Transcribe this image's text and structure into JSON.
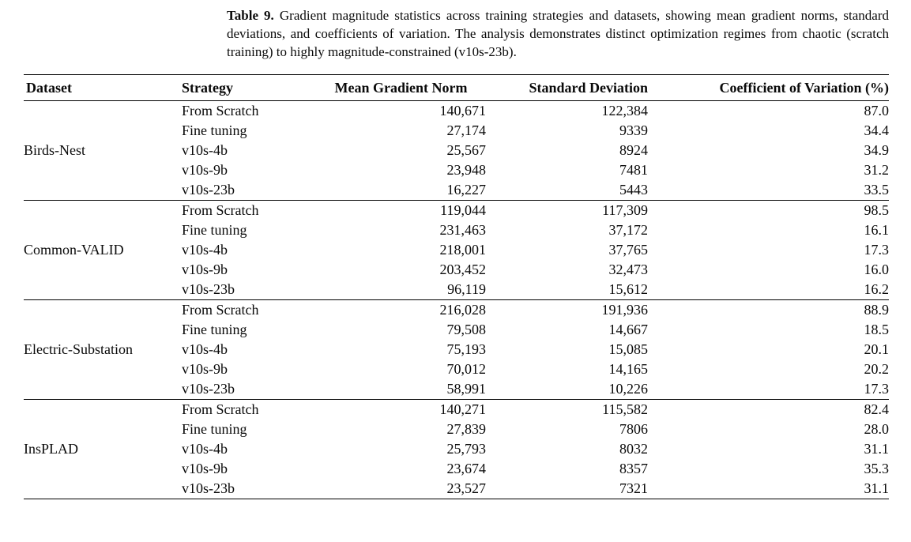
{
  "caption": {
    "label": "Table 9.",
    "text": "Gradient magnitude statistics across training strategies and datasets, showing mean gradient norms, standard deviations, and coefficients of variation. The analysis demonstrates distinct optimization regimes from chaotic (scratch training) to highly magnitude-constrained (v10s-23b)."
  },
  "table": {
    "headers": [
      "Dataset",
      "Strategy",
      "Mean Gradient Norm",
      "Standard Deviation",
      "Coefficient of Variation (%)"
    ],
    "groups": [
      {
        "dataset": "Birds-Nest",
        "rows": [
          [
            "From Scratch",
            "140,671",
            "122,384",
            "87.0"
          ],
          [
            "Fine tuning",
            "27,174",
            "9339",
            "34.4"
          ],
          [
            "v10s-4b",
            "25,567",
            "8924",
            "34.9"
          ],
          [
            "v10s-9b",
            "23,948",
            "7481",
            "31.2"
          ],
          [
            "v10s-23b",
            "16,227",
            "5443",
            "33.5"
          ]
        ]
      },
      {
        "dataset": "Common-VALID",
        "rows": [
          [
            "From Scratch",
            "119,044",
            "117,309",
            "98.5"
          ],
          [
            "Fine tuning",
            "231,463",
            "37,172",
            "16.1"
          ],
          [
            "v10s-4b",
            "218,001",
            "37,765",
            "17.3"
          ],
          [
            "v10s-9b",
            "203,452",
            "32,473",
            "16.0"
          ],
          [
            "v10s-23b",
            "96,119",
            "15,612",
            "16.2"
          ]
        ]
      },
      {
        "dataset": "Electric-Substation",
        "rows": [
          [
            "From Scratch",
            "216,028",
            "191,936",
            "88.9"
          ],
          [
            "Fine tuning",
            "79,508",
            "14,667",
            "18.5"
          ],
          [
            "v10s-4b",
            "75,193",
            "15,085",
            "20.1"
          ],
          [
            "v10s-9b",
            "70,012",
            "14,165",
            "20.2"
          ],
          [
            "v10s-23b",
            "58,991",
            "10,226",
            "17.3"
          ]
        ]
      },
      {
        "dataset": "InsPLAD",
        "rows": [
          [
            "From Scratch",
            "140,271",
            "115,582",
            "82.4"
          ],
          [
            "Fine tuning",
            "27,839",
            "7806",
            "28.0"
          ],
          [
            "v10s-4b",
            "25,793",
            "8032",
            "31.1"
          ],
          [
            "v10s-9b",
            "23,674",
            "8357",
            "35.3"
          ],
          [
            "v10s-23b",
            "23,527",
            "7321",
            "31.1"
          ]
        ]
      }
    ]
  },
  "chart_data": {
    "type": "table",
    "title": "Table 9. Gradient magnitude statistics across training strategies and datasets",
    "columns": [
      "Dataset",
      "Strategy",
      "Mean Gradient Norm",
      "Standard Deviation",
      "Coefficient of Variation (%)"
    ],
    "rows": [
      [
        "Birds-Nest",
        "From Scratch",
        140671,
        122384,
        87.0
      ],
      [
        "Birds-Nest",
        "Fine tuning",
        27174,
        9339,
        34.4
      ],
      [
        "Birds-Nest",
        "v10s-4b",
        25567,
        8924,
        34.9
      ],
      [
        "Birds-Nest",
        "v10s-9b",
        23948,
        7481,
        31.2
      ],
      [
        "Birds-Nest",
        "v10s-23b",
        16227,
        5443,
        33.5
      ],
      [
        "Common-VALID",
        "From Scratch",
        119044,
        117309,
        98.5
      ],
      [
        "Common-VALID",
        "Fine tuning",
        231463,
        37172,
        16.1
      ],
      [
        "Common-VALID",
        "v10s-4b",
        218001,
        37765,
        17.3
      ],
      [
        "Common-VALID",
        "v10s-9b",
        203452,
        32473,
        16.0
      ],
      [
        "Common-VALID",
        "v10s-23b",
        96119,
        15612,
        16.2
      ],
      [
        "Electric-Substation",
        "From Scratch",
        216028,
        191936,
        88.9
      ],
      [
        "Electric-Substation",
        "Fine tuning",
        79508,
        14667,
        18.5
      ],
      [
        "Electric-Substation",
        "v10s-4b",
        75193,
        15085,
        20.1
      ],
      [
        "Electric-Substation",
        "v10s-9b",
        70012,
        14165,
        20.2
      ],
      [
        "Electric-Substation",
        "v10s-23b",
        58991,
        10226,
        17.3
      ],
      [
        "InsPLAD",
        "From Scratch",
        140271,
        115582,
        82.4
      ],
      [
        "InsPLAD",
        "Fine tuning",
        27839,
        7806,
        28.0
      ],
      [
        "InsPLAD",
        "v10s-4b",
        25793,
        8032,
        31.1
      ],
      [
        "InsPLAD",
        "v10s-9b",
        23674,
        8357,
        35.3
      ],
      [
        "InsPLAD",
        "v10s-23b",
        23527,
        7321,
        31.1
      ]
    ]
  }
}
